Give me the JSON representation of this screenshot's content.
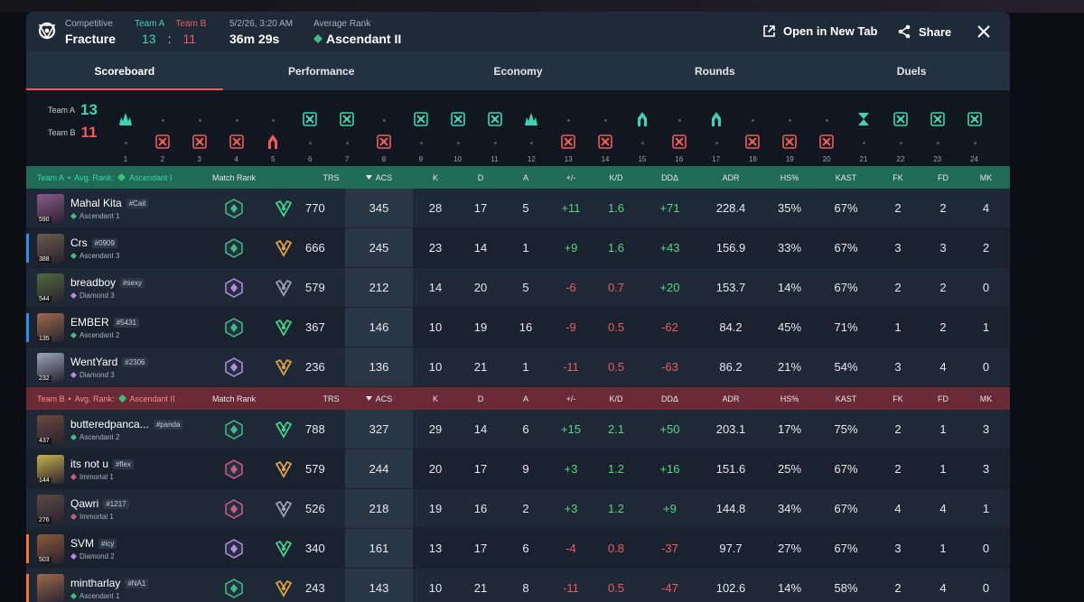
{
  "header": {
    "mode_label": "Competitive",
    "map": "Fracture",
    "team_a_label": "Team A",
    "team_b_label": "Team B",
    "score_a": "13",
    "score_sep": ":",
    "score_b": "11",
    "date": "5/2/26, 3:20 AM",
    "duration": "36m 29s",
    "avg_rank_label": "Average Rank",
    "avg_rank": "Ascendant II",
    "open_new_tab": "Open in New Tab",
    "share": "Share"
  },
  "tabs": [
    {
      "label": "Scoreboard",
      "active": true
    },
    {
      "label": "Performance"
    },
    {
      "label": "Economy"
    },
    {
      "label": "Rounds"
    },
    {
      "label": "Duels"
    }
  ],
  "timeline": {
    "team_a_label": "Team A",
    "team_a_score": "13",
    "team_b_label": "Team B",
    "team_b_score": "11",
    "rounds": [
      {
        "n": "1",
        "winner": "A",
        "icon": "spike-detonate"
      },
      {
        "n": "2",
        "winner": "B",
        "icon": "elimination"
      },
      {
        "n": "3",
        "winner": "B",
        "icon": "elimination"
      },
      {
        "n": "4",
        "winner": "B",
        "icon": "elimination"
      },
      {
        "n": "5",
        "winner": "B",
        "icon": "defuse"
      },
      {
        "n": "6",
        "winner": "A",
        "icon": "elimination"
      },
      {
        "n": "7",
        "winner": "A",
        "icon": "elimination"
      },
      {
        "n": "8",
        "winner": "B",
        "icon": "elimination"
      },
      {
        "n": "9",
        "winner": "A",
        "icon": "elimination"
      },
      {
        "n": "10",
        "winner": "A",
        "icon": "elimination"
      },
      {
        "n": "11",
        "winner": "A",
        "icon": "elimination"
      },
      {
        "n": "12",
        "winner": "A",
        "icon": "spike-detonate"
      },
      {
        "n": "13",
        "winner": "B",
        "icon": "elimination"
      },
      {
        "n": "14",
        "winner": "B",
        "icon": "elimination"
      },
      {
        "n": "15",
        "winner": "A",
        "icon": "defuse"
      },
      {
        "n": "16",
        "winner": "B",
        "icon": "elimination"
      },
      {
        "n": "17",
        "winner": "A",
        "icon": "defuse"
      },
      {
        "n": "18",
        "winner": "B",
        "icon": "elimination"
      },
      {
        "n": "19",
        "winner": "B",
        "icon": "elimination"
      },
      {
        "n": "20",
        "winner": "B",
        "icon": "elimination"
      },
      {
        "n": "21",
        "winner": "A",
        "icon": "time-expired"
      },
      {
        "n": "22",
        "winner": "A",
        "icon": "elimination"
      },
      {
        "n": "23",
        "winner": "A",
        "icon": "elimination"
      },
      {
        "n": "24",
        "winner": "A",
        "icon": "elimination"
      }
    ]
  },
  "columns": {
    "match_rank": "Match Rank",
    "trs": "TRS",
    "acs": "ACS",
    "k": "K",
    "d": "D",
    "a": "A",
    "pm": "+/-",
    "kd": "K/D",
    "dd": "DDΔ",
    "adr": "ADR",
    "hs": "HS%",
    "kast": "KAST",
    "fk": "FK",
    "fd": "FD",
    "mk": "MK"
  },
  "team_a": {
    "label": "Team A",
    "sep": "•",
    "avg_label": "Avg. Rank:",
    "avg_rank": "Ascendant I",
    "players": [
      {
        "name": "Mahal Kita",
        "tag": "#Cait",
        "rank": "Ascendant 1",
        "level": "590",
        "trs": "770",
        "acs": "345",
        "k": "28",
        "d": "17",
        "a": "5",
        "pm": "+11",
        "kd": "1.6",
        "dd": "+71",
        "adr": "228.4",
        "hs": "35%",
        "kast": "67%",
        "fk": "2",
        "fd": "2",
        "mk": "4",
        "rank_color": "#3fbf7f",
        "av_color": "#8a5a8c"
      },
      {
        "name": "Crs",
        "tag": "#0909",
        "rank": "Ascendant 3",
        "level": "388",
        "trs": "666",
        "acs": "245",
        "k": "23",
        "d": "14",
        "a": "1",
        "pm": "+9",
        "kd": "1.6",
        "dd": "+43",
        "adr": "156.9",
        "hs": "33%",
        "kast": "67%",
        "fk": "3",
        "fd": "3",
        "mk": "2",
        "rank_color": "#3fbf7f",
        "av_color": "#6b5a4c",
        "bar": "#2f8fe8"
      },
      {
        "name": "breadboy",
        "tag": "#sexy",
        "rank": "Diamond 3",
        "level": "544",
        "trs": "579",
        "acs": "212",
        "k": "14",
        "d": "20",
        "a": "5",
        "pm": "-6",
        "kd": "0.7",
        "dd": "+20",
        "adr": "153.7",
        "hs": "14%",
        "kast": "67%",
        "fk": "2",
        "fd": "2",
        "mk": "0",
        "rank_color": "#b58ce0",
        "av_color": "#4e6a3a"
      },
      {
        "name": "EMBER",
        "tag": "#5431",
        "rank": "Ascendant 2",
        "level": "135",
        "trs": "367",
        "acs": "146",
        "k": "10",
        "d": "19",
        "a": "16",
        "pm": "-9",
        "kd": "0.5",
        "dd": "-62",
        "adr": "84.2",
        "hs": "45%",
        "kast": "71%",
        "fk": "1",
        "fd": "2",
        "mk": "1",
        "rank_color": "#3fbf7f",
        "av_color": "#9c6a4a",
        "bar": "#2f8fe8"
      },
      {
        "name": "WentYard",
        "tag": "#2306",
        "rank": "Diamond 3",
        "level": "232",
        "trs": "236",
        "acs": "136",
        "k": "10",
        "d": "21",
        "a": "1",
        "pm": "-11",
        "kd": "0.5",
        "dd": "-63",
        "adr": "86.2",
        "hs": "21%",
        "kast": "54%",
        "fk": "3",
        "fd": "4",
        "mk": "0",
        "rank_color": "#b58ce0",
        "av_color": "#9aa8b8"
      }
    ]
  },
  "team_b": {
    "label": "Team B",
    "sep": "•",
    "avg_label": "Avg. Rank:",
    "avg_rank": "Ascendant II",
    "players": [
      {
        "name": "butteredpanca...",
        "tag": "#panda",
        "rank": "Ascendant 2",
        "level": "437",
        "trs": "788",
        "acs": "327",
        "k": "29",
        "d": "14",
        "a": "6",
        "pm": "+15",
        "kd": "2.1",
        "dd": "+50",
        "adr": "203.1",
        "hs": "17%",
        "kast": "75%",
        "fk": "2",
        "fd": "1",
        "mk": "3",
        "rank_color": "#3fbf7f",
        "av_color": "#6a4a3a"
      },
      {
        "name": "its not u",
        "tag": "#flex",
        "rank": "Immortal 1",
        "level": "144",
        "trs": "579",
        "acs": "244",
        "k": "20",
        "d": "17",
        "a": "9",
        "pm": "+3",
        "kd": "1.2",
        "dd": "+16",
        "adr": "151.6",
        "hs": "25%",
        "kast": "67%",
        "fk": "2",
        "fd": "1",
        "mk": "3",
        "rank_color": "#d05a86",
        "av_color": "#c8b24a"
      },
      {
        "name": "Qawri",
        "tag": "#1217",
        "rank": "Immortal 1",
        "level": "276",
        "trs": "526",
        "acs": "218",
        "k": "19",
        "d": "16",
        "a": "2",
        "pm": "+3",
        "kd": "1.2",
        "dd": "+9",
        "adr": "144.8",
        "hs": "34%",
        "kast": "67%",
        "fk": "4",
        "fd": "4",
        "mk": "1",
        "rank_color": "#d05a86",
        "av_color": "#5a4a44"
      },
      {
        "name": "SVM",
        "tag": "#icy",
        "rank": "Diamond 2",
        "level": "503",
        "trs": "340",
        "acs": "161",
        "k": "13",
        "d": "17",
        "a": "6",
        "pm": "-4",
        "kd": "0.8",
        "dd": "-37",
        "adr": "97.7",
        "hs": "27%",
        "kast": "67%",
        "fk": "3",
        "fd": "1",
        "mk": "0",
        "rank_color": "#b58ce0",
        "av_color": "#8a5a3a",
        "bar": "#f07a2a"
      },
      {
        "name": "mintharlay",
        "tag": "#NA1",
        "rank": "Ascendant 1",
        "level": "",
        "trs": "243",
        "acs": "143",
        "k": "10",
        "d": "21",
        "a": "8",
        "pm": "-11",
        "kd": "0.5",
        "dd": "-47",
        "adr": "102.6",
        "hs": "14%",
        "kast": "58%",
        "fk": "2",
        "fd": "4",
        "mk": "0",
        "rank_color": "#3fbf7f",
        "av_color": "#9c6a4a",
        "bar": "#f07a2a"
      }
    ]
  },
  "colors": {
    "team_a": "#3fd3b5",
    "team_b": "#ef5b5b",
    "positive": "#5ad67c",
    "negative": "#ef5b5b"
  }
}
